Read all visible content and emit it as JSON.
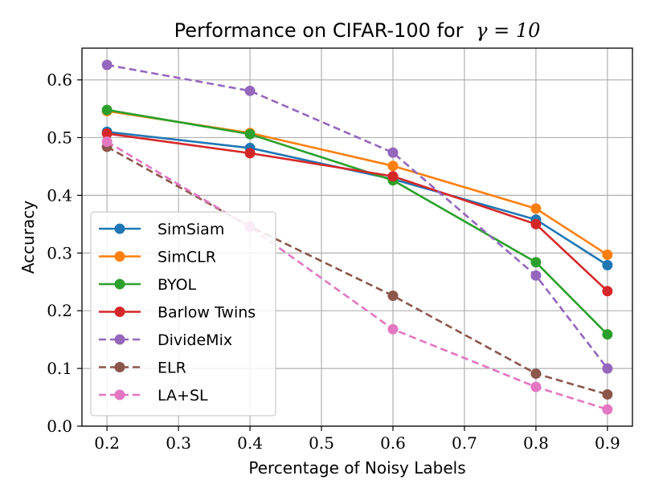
{
  "chart_data": {
    "type": "line",
    "title": "Performance on CIFAR-100 for",
    "title_math": "γ = 10",
    "xlabel": "Percentage of Noisy Labels",
    "ylabel": "Accuracy",
    "x": [
      0.2,
      0.4,
      0.6,
      0.8,
      0.9
    ],
    "xlim": [
      0.165,
      0.935
    ],
    "ylim": [
      0.0,
      0.655
    ],
    "xticks": [
      "0.2",
      "0.3",
      "0.4",
      "0.5",
      "0.6",
      "0.7",
      "0.8",
      "0.9"
    ],
    "yticks": [
      "0.0",
      "0.1",
      "0.2",
      "0.3",
      "0.4",
      "0.5",
      "0.6"
    ],
    "grid": true,
    "legend_position": "lower-left",
    "series": [
      {
        "name": "SimSiam",
        "color": "#1f77b4",
        "style": "solid",
        "values": [
          0.51,
          0.482,
          0.428,
          0.358,
          0.279
        ]
      },
      {
        "name": "SimCLR",
        "color": "#ff7f0e",
        "style": "solid",
        "values": [
          0.546,
          0.508,
          0.451,
          0.377,
          0.297
        ]
      },
      {
        "name": "BYOL",
        "color": "#2ca02c",
        "style": "solid",
        "values": [
          0.548,
          0.506,
          0.426,
          0.284,
          0.159
        ]
      },
      {
        "name": "Barlow Twins",
        "color": "#d62728",
        "style": "solid",
        "values": [
          0.507,
          0.473,
          0.433,
          0.35,
          0.234
        ]
      },
      {
        "name": "DivideMix",
        "color": "#9467bd",
        "style": "dashed",
        "values": [
          0.626,
          0.581,
          0.474,
          0.261,
          0.1
        ]
      },
      {
        "name": "ELR",
        "color": "#8c564b",
        "style": "dashed",
        "values": [
          0.484,
          0.346,
          0.226,
          0.091,
          0.055
        ]
      },
      {
        "name": "LA+SL",
        "color": "#e377c2",
        "style": "dashed",
        "values": [
          0.493,
          0.345,
          0.168,
          0.068,
          0.029
        ]
      }
    ]
  }
}
